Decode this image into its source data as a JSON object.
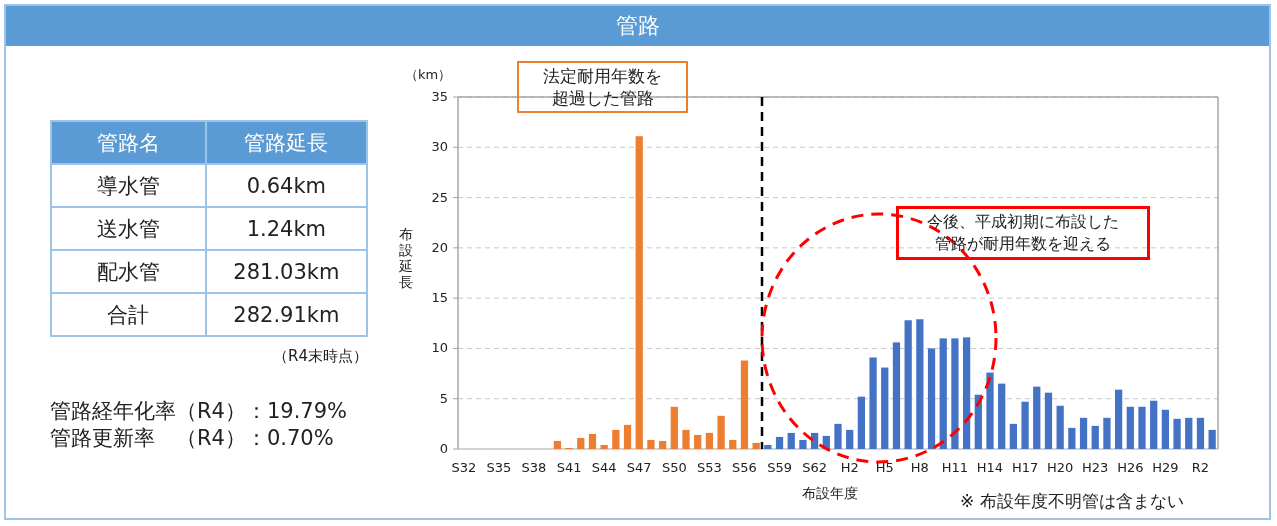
{
  "chart_data": [
    {
      "type": "other",
      "title": "管路",
      "annotations": [
        "管路名",
        "管路延長",
        "導水管",
        "0.64km",
        "送水管",
        "1.24km",
        "配水管",
        "281.03km",
        "合計",
        "282.91km",
        "（R4末時点）",
        "管路経年化率（R4）：19.79%",
        "管路更新率　（R4）：0.70%"
      ]
    },
    {
      "type": "bar",
      "xlabel": "布設年度",
      "ylabel": "布設延長",
      "annotations": [
        "（km）",
        "法定耐用年数を超過した管路",
        "今後、平成初期に布設した管路が耐用年数を迎える",
        "※ 布設年度不明管は含まない"
      ],
      "categories": [
        "S32",
        null,
        null,
        "S35",
        null,
        null,
        "S38",
        null,
        null,
        "S41",
        null,
        null,
        "S44",
        null,
        null,
        "S47",
        null,
        null,
        "S50",
        null,
        null,
        "S53",
        null,
        null,
        "S56",
        null,
        null,
        "S59",
        null,
        null,
        "S62",
        null,
        null,
        "H2",
        null,
        null,
        "H5",
        null,
        null,
        "H8",
        null,
        null,
        "H11",
        null,
        null,
        "H14",
        null,
        null,
        "H17",
        null,
        null,
        "H20",
        null,
        null,
        "H23",
        null,
        null,
        "H26",
        null,
        null,
        "H29",
        null,
        null,
        "R2",
        null
      ],
      "values": [
        0,
        0,
        0,
        0,
        0,
        0,
        0,
        0,
        0.8,
        0.1,
        1.1,
        1.5,
        0.4,
        1.9,
        2.4,
        31.1,
        0.9,
        0.8,
        4.2,
        1.9,
        1.4,
        1.6,
        3.3,
        0.9,
        8.8,
        0.6,
        0.4,
        1.2,
        1.6,
        0.9,
        1.6,
        1.3,
        2.5,
        1.9,
        5.2,
        9.1,
        8.1,
        10.6,
        12.8,
        12.9,
        10.0,
        11.0,
        11.0,
        11.1,
        5.4,
        7.6,
        6.5,
        2.5,
        4.7,
        6.2,
        5.6,
        4.3,
        2.1,
        3.1,
        2.3,
        3.1,
        5.9,
        4.2,
        4.2,
        4.8,
        3.9,
        3.0,
        3.1,
        3.1,
        1.9
      ],
      "colors": [
        "#ed7d31",
        "#ed7d31",
        "#ed7d31",
        "#ed7d31",
        "#ed7d31",
        "#ed7d31",
        "#ed7d31",
        "#ed7d31",
        "#ed7d31",
        "#ed7d31",
        "#ed7d31",
        "#ed7d31",
        "#ed7d31",
        "#ed7d31",
        "#ed7d31",
        "#ed7d31",
        "#ed7d31",
        "#ed7d31",
        "#ed7d31",
        "#ed7d31",
        "#ed7d31",
        "#ed7d31",
        "#ed7d31",
        "#ed7d31",
        "#ed7d31",
        "#ed7d31",
        "#4472c4",
        "#4472c4",
        "#4472c4",
        "#4472c4",
        "#4472c4",
        "#4472c4",
        "#4472c4",
        "#4472c4",
        "#4472c4",
        "#4472c4",
        "#4472c4",
        "#4472c4",
        "#4472c4",
        "#4472c4",
        "#4472c4",
        "#4472c4",
        "#4472c4",
        "#4472c4",
        "#4472c4",
        "#4472c4",
        "#4472c4",
        "#4472c4",
        "#4472c4",
        "#4472c4",
        "#4472c4",
        "#4472c4",
        "#4472c4",
        "#4472c4",
        "#4472c4",
        "#4472c4",
        "#4472c4",
        "#4472c4",
        "#4472c4",
        "#4472c4",
        "#4472c4",
        "#4472c4",
        "#4472c4",
        "#4472c4",
        "#4472c4"
      ],
      "ylim": [
        0,
        35
      ],
      "yticks": [
        0,
        5,
        10,
        15,
        20,
        25,
        30,
        35
      ],
      "grid": "y"
    }
  ]
}
